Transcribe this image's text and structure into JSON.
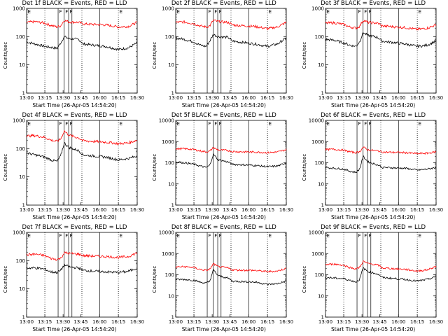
{
  "figure": {
    "xlabel": "Start Time (26-Apr-05 14:54:20)",
    "ylabel": "Counts/sec"
  },
  "colors": {
    "events": "#000000",
    "lld": "#ff0000",
    "axes": "#000000"
  },
  "chart_data": [
    {
      "type": "line",
      "title": "Det 1f BLACK = Events, RED = LLD",
      "xlabel": "Start Time (26-Apr-05 14:54:20)",
      "ylabel": "Counts/sec",
      "y_scale": "log",
      "ylim": [
        1,
        1000
      ],
      "y_ticks": [
        "1",
        "10",
        "100",
        "1000"
      ],
      "x_ticks": [
        "13:00",
        "13:15",
        "13:30",
        "13:45",
        "16:00",
        "16:15",
        "16:30"
      ],
      "markers": [
        "E",
        "F",
        "F",
        "F",
        "E"
      ],
      "series": [
        {
          "x": [
            "13:00",
            "13:07",
            "13:15",
            "13:20",
            "13:25",
            "13:28",
            "13:31",
            "13:35",
            "13:43",
            "13:50",
            "13:58",
            "16:05",
            "16:15",
            "16:23",
            "16:30"
          ],
          "values": [
            65,
            55,
            45,
            42,
            38,
            60,
            100,
            85,
            80,
            65,
            55,
            45,
            35,
            40,
            60
          ]
        },
        {
          "name": "LLD",
          "x": [
            "13:00",
            "13:07",
            "13:15",
            "13:20",
            "13:25",
            "13:28",
            "13:31",
            "13:35",
            "13:43",
            "13:50",
            "13:58",
            "16:05",
            "16:15",
            "16:23",
            "16:30"
          ],
          "values": [
            320,
            340,
            300,
            250,
            220,
            240,
            380,
            330,
            320,
            300,
            280,
            260,
            220,
            230,
            320
          ]
        }
      ]
    },
    {
      "type": "line",
      "title": "Det 2f BLACK = Events, RED = LLD",
      "xlabel": "Start Time (26-Apr-05 14:54:20)",
      "ylabel": "Counts/sec",
      "y_scale": "log",
      "ylim": [
        1,
        1000
      ],
      "y_ticks": [
        "1",
        "10",
        "100",
        "1000"
      ],
      "x_ticks": [
        "13:00",
        "13:15",
        "13:30",
        "13:45",
        "16:00",
        "16:15",
        "16:30"
      ],
      "markers": [
        "E",
        "F",
        "F",
        "F",
        "E"
      ],
      "series": [
        {
          "x": [
            "13:00",
            "13:07",
            "13:15",
            "13:20",
            "13:25",
            "13:28",
            "13:31",
            "13:35",
            "13:43",
            "13:50",
            "13:58",
            "16:05",
            "16:15",
            "16:23",
            "16:30"
          ],
          "values": [
            90,
            80,
            65,
            50,
            45,
            70,
            120,
            100,
            95,
            80,
            70,
            55,
            45,
            55,
            90
          ]
        },
        {
          "name": "LLD",
          "x": [
            "13:00",
            "13:07",
            "13:15",
            "13:20",
            "13:25",
            "13:28",
            "13:31",
            "13:35",
            "13:43",
            "13:50",
            "13:58",
            "16:05",
            "16:15",
            "16:23",
            "16:30"
          ],
          "values": [
            320,
            330,
            290,
            240,
            220,
            240,
            380,
            340,
            320,
            290,
            260,
            230,
            190,
            220,
            320
          ]
        }
      ]
    },
    {
      "type": "line",
      "title": "Det 3f BLACK = Events, RED = LLD",
      "xlabel": "Start Time (26-Apr-05 14:54:20)",
      "ylabel": "Counts/sec",
      "y_scale": "log",
      "ylim": [
        1,
        1000
      ],
      "y_ticks": [
        "1",
        "10",
        "100",
        "1000"
      ],
      "x_ticks": [
        "13:00",
        "13:15",
        "13:30",
        "13:45",
        "16:00",
        "16:15",
        "16:30"
      ],
      "markers": [
        "E",
        "F",
        "F",
        "F",
        "E"
      ],
      "series": [
        {
          "x": [
            "13:00",
            "13:07",
            "13:15",
            "13:20",
            "13:25",
            "13:28",
            "13:31",
            "13:35",
            "13:43",
            "13:50",
            "13:58",
            "16:05",
            "16:15",
            "16:23",
            "16:30"
          ],
          "values": [
            80,
            75,
            60,
            50,
            45,
            65,
            140,
            110,
            95,
            80,
            70,
            55,
            45,
            50,
            70
          ]
        },
        {
          "name": "LLD",
          "x": [
            "13:00",
            "13:07",
            "13:15",
            "13:20",
            "13:25",
            "13:28",
            "13:31",
            "13:35",
            "13:43",
            "13:50",
            "13:58",
            "16:05",
            "16:15",
            "16:23",
            "16:30"
          ],
          "values": [
            300,
            310,
            270,
            220,
            200,
            230,
            380,
            320,
            300,
            270,
            240,
            210,
            180,
            200,
            260
          ]
        }
      ]
    },
    {
      "type": "line",
      "title": "Det 4f BLACK = Events, RED = LLD",
      "xlabel": "Start Time (26-Apr-05 14:54:20)",
      "ylabel": "Counts/sec",
      "y_scale": "log",
      "ylim": [
        1,
        1000
      ],
      "y_ticks": [
        "1",
        "10",
        "100",
        "1000"
      ],
      "x_ticks": [
        "13:00",
        "13:15",
        "13:30",
        "13:45",
        "16:00",
        "16:15",
        "16:30"
      ],
      "markers": [
        "E",
        "F",
        "F",
        "F",
        "E"
      ],
      "series": [
        {
          "x": [
            "13:00",
            "13:07",
            "13:15",
            "13:20",
            "13:25",
            "13:28",
            "13:31",
            "13:35",
            "13:43",
            "13:50",
            "13:58",
            "16:05",
            "16:15",
            "16:23",
            "16:30"
          ],
          "values": [
            70,
            60,
            50,
            40,
            35,
            55,
            160,
            110,
            85,
            70,
            60,
            50,
            40,
            45,
            55
          ]
        },
        {
          "name": "LLD",
          "x": [
            "13:00",
            "13:07",
            "13:15",
            "13:20",
            "13:25",
            "13:28",
            "13:31",
            "13:35",
            "13:43",
            "13:50",
            "13:58",
            "16:05",
            "16:15",
            "16:23",
            "16:30"
          ],
          "values": [
            280,
            290,
            250,
            200,
            180,
            220,
            420,
            300,
            240,
            210,
            190,
            170,
            150,
            160,
            200
          ]
        }
      ]
    },
    {
      "type": "line",
      "title": "Det 5f BLACK = Events, RED = LLD",
      "xlabel": "Start Time (26-Apr-05 14:54:20)",
      "ylabel": "Counts/sec",
      "y_scale": "log",
      "ylim": [
        1,
        10000
      ],
      "y_ticks": [
        "1",
        "10",
        "100",
        "1000",
        "10000"
      ],
      "x_ticks": [
        "13:00",
        "13:15",
        "13:30",
        "13:45",
        "16:00",
        "16:15",
        "16:30"
      ],
      "markers": [
        "E",
        "F",
        "F",
        "F",
        "E"
      ],
      "series": [
        {
          "x": [
            "13:00",
            "13:07",
            "13:15",
            "13:20",
            "13:25",
            "13:28",
            "13:31",
            "13:35",
            "13:43",
            "13:50",
            "13:58",
            "16:05",
            "16:15",
            "16:23",
            "16:30"
          ],
          "values": [
            110,
            100,
            85,
            70,
            60,
            75,
            250,
            140,
            110,
            95,
            85,
            75,
            65,
            70,
            100
          ]
        },
        {
          "name": "LLD",
          "x": [
            "13:00",
            "13:07",
            "13:15",
            "13:20",
            "13:25",
            "13:28",
            "13:31",
            "13:35",
            "13:43",
            "13:50",
            "13:58",
            "16:05",
            "16:15",
            "16:23",
            "16:30"
          ],
          "values": [
            450,
            460,
            420,
            360,
            330,
            350,
            520,
            400,
            380,
            360,
            340,
            320,
            300,
            320,
            420
          ]
        }
      ]
    },
    {
      "type": "line",
      "title": "Det 6f BLACK = Events, RED = LLD",
      "xlabel": "Start Time (26-Apr-05 14:54:20)",
      "ylabel": "Counts/sec",
      "y_scale": "log",
      "ylim": [
        1,
        10000
      ],
      "y_ticks": [
        "1",
        "10",
        "100",
        "1000",
        "10000"
      ],
      "x_ticks": [
        "13:00",
        "13:15",
        "13:30",
        "13:45",
        "16:00",
        "16:15",
        "16:30"
      ],
      "markers": [
        "E",
        "F",
        "F",
        "F",
        "E"
      ],
      "series": [
        {
          "x": [
            "13:00",
            "13:07",
            "13:15",
            "13:20",
            "13:25",
            "13:28",
            "13:31",
            "13:35",
            "13:43",
            "13:50",
            "13:58",
            "16:05",
            "16:15",
            "16:23",
            "16:30"
          ],
          "values": [
            60,
            55,
            50,
            40,
            35,
            50,
            200,
            110,
            80,
            70,
            60,
            55,
            45,
            50,
            60
          ]
        },
        {
          "name": "LLD",
          "x": [
            "13:00",
            "13:07",
            "13:15",
            "13:20",
            "13:25",
            "13:28",
            "13:31",
            "13:35",
            "13:43",
            "13:50",
            "13:58",
            "16:05",
            "16:15",
            "16:23",
            "16:30"
          ],
          "values": [
            420,
            430,
            390,
            330,
            300,
            330,
            550,
            400,
            370,
            340,
            320,
            300,
            270,
            280,
            330
          ]
        }
      ]
    },
    {
      "type": "line",
      "title": "Det 7f BLACK = Events, RED = LLD",
      "xlabel": "Start Time (26-Apr-05 14:54:20)",
      "ylabel": "Counts/sec",
      "y_scale": "log",
      "ylim": [
        1,
        1000
      ],
      "y_ticks": [
        "1",
        "10",
        "100",
        "1000"
      ],
      "x_ticks": [
        "13:00",
        "13:15",
        "13:30",
        "13:45",
        "16:00",
        "16:15",
        "16:30"
      ],
      "markers": [
        "E",
        "F",
        "F",
        "F",
        "E"
      ],
      "series": [
        {
          "x": [
            "13:00",
            "13:07",
            "13:15",
            "13:20",
            "13:25",
            "13:28",
            "13:31",
            "13:35",
            "13:43",
            "13:50",
            "13:58",
            "16:05",
            "16:15",
            "16:23",
            "16:30"
          ],
          "values": [
            55,
            55,
            50,
            40,
            38,
            45,
            70,
            60,
            55,
            50,
            45,
            40,
            38,
            42,
            55
          ]
        },
        {
          "name": "LLD",
          "x": [
            "13:00",
            "13:07",
            "13:15",
            "13:20",
            "13:25",
            "13:28",
            "13:31",
            "13:35",
            "13:43",
            "13:50",
            "13:58",
            "16:05",
            "16:15",
            "16:23",
            "16:30"
          ],
          "values": [
            160,
            170,
            150,
            120,
            110,
            120,
            190,
            180,
            170,
            160,
            150,
            140,
            130,
            140,
            190
          ]
        }
      ]
    },
    {
      "type": "line",
      "title": "Det 8f BLACK = Events, RED = LLD",
      "xlabel": "Start Time (26-Apr-05 14:54:20)",
      "ylabel": "Counts/sec",
      "y_scale": "log",
      "ylim": [
        1,
        10000
      ],
      "y_ticks": [
        "1",
        "10",
        "100",
        "1000",
        "10000"
      ],
      "x_ticks": [
        "13:00",
        "13:15",
        "13:30",
        "13:45",
        "16:00",
        "16:15",
        "16:30"
      ],
      "markers": [
        "E",
        "F",
        "F",
        "F",
        "E"
      ],
      "series": [
        {
          "x": [
            "13:00",
            "13:07",
            "13:15",
            "13:20",
            "13:25",
            "13:28",
            "13:31",
            "13:35",
            "13:43",
            "13:50",
            "13:58",
            "16:05",
            "16:15",
            "16:23",
            "16:30"
          ],
          "values": [
            60,
            60,
            55,
            45,
            40,
            50,
            170,
            90,
            70,
            60,
            50,
            45,
            35,
            38,
            50
          ]
        },
        {
          "name": "LLD",
          "x": [
            "13:00",
            "13:07",
            "13:15",
            "13:20",
            "13:25",
            "13:28",
            "13:31",
            "13:35",
            "13:43",
            "13:50",
            "13:58",
            "16:05",
            "16:15",
            "16:23",
            "16:30"
          ],
          "values": [
            230,
            240,
            220,
            180,
            160,
            180,
            330,
            240,
            210,
            190,
            170,
            160,
            140,
            150,
            200
          ]
        }
      ]
    },
    {
      "type": "line",
      "title": "Det 9f BLACK = Events, RED = LLD",
      "xlabel": "Start Time (26-Apr-05 14:54:20)",
      "ylabel": "Counts/sec",
      "y_scale": "log",
      "ylim": [
        1,
        10000
      ],
      "y_ticks": [
        "1",
        "10",
        "100",
        "1000",
        "10000"
      ],
      "x_ticks": [
        "13:00",
        "13:15",
        "13:30",
        "13:45",
        "16:00",
        "16:15",
        "16:30"
      ],
      "markers": [
        "E",
        "F",
        "F",
        "F",
        "E"
      ],
      "series": [
        {
          "x": [
            "13:00",
            "13:07",
            "13:15",
            "13:20",
            "13:25",
            "13:28",
            "13:31",
            "13:35",
            "13:43",
            "13:50",
            "13:58",
            "16:05",
            "16:15",
            "16:23",
            "16:30"
          ],
          "values": [
            75,
            70,
            65,
            55,
            45,
            60,
            210,
            140,
            110,
            90,
            75,
            60,
            50,
            60,
            80
          ]
        },
        {
          "name": "LLD",
          "x": [
            "13:00",
            "13:07",
            "13:15",
            "13:20",
            "13:25",
            "13:28",
            "13:31",
            "13:35",
            "13:43",
            "13:50",
            "13:58",
            "16:05",
            "16:15",
            "16:23",
            "16:30"
          ],
          "values": [
            300,
            320,
            280,
            220,
            190,
            220,
            430,
            340,
            290,
            250,
            210,
            180,
            150,
            170,
            250
          ]
        }
      ]
    }
  ]
}
